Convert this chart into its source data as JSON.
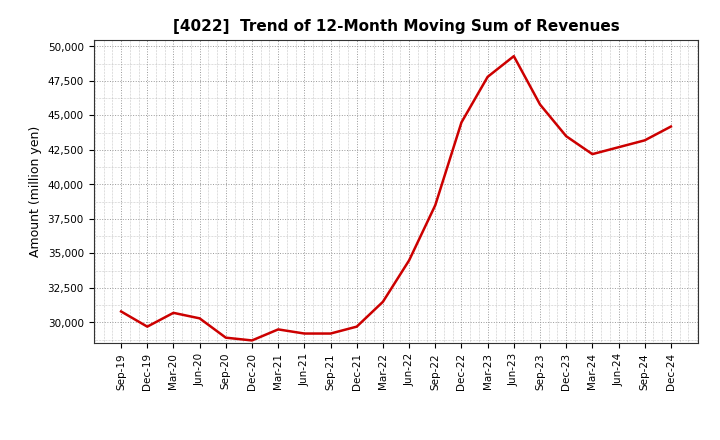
{
  "title": "[4022]  Trend of 12-Month Moving Sum of Revenues",
  "ylabel": "Amount (million yen)",
  "line_color": "#cc0000",
  "background_color": "#ffffff",
  "plot_bg_color": "#ffffff",
  "grid_color": "#999999",
  "ylim": [
    28500,
    50500
  ],
  "yticks": [
    30000,
    32500,
    35000,
    37500,
    40000,
    42500,
    45000,
    47500,
    50000
  ],
  "x_labels": [
    "Sep-19",
    "Dec-19",
    "Mar-20",
    "Jun-20",
    "Sep-20",
    "Dec-20",
    "Mar-21",
    "Jun-21",
    "Sep-21",
    "Dec-21",
    "Mar-22",
    "Jun-22",
    "Sep-22",
    "Dec-22",
    "Mar-23",
    "Jun-23",
    "Sep-23",
    "Dec-23",
    "Mar-24",
    "Jun-24",
    "Sep-24",
    "Dec-24"
  ],
  "values": [
    30800,
    29700,
    30700,
    30300,
    28900,
    28700,
    29500,
    29200,
    29200,
    29700,
    31500,
    34500,
    38500,
    44500,
    47800,
    49300,
    45800,
    43500,
    42200,
    42700,
    43200,
    44200
  ],
  "title_fontsize": 11,
  "ylabel_fontsize": 9,
  "tick_fontsize": 7.5,
  "line_width": 1.8
}
